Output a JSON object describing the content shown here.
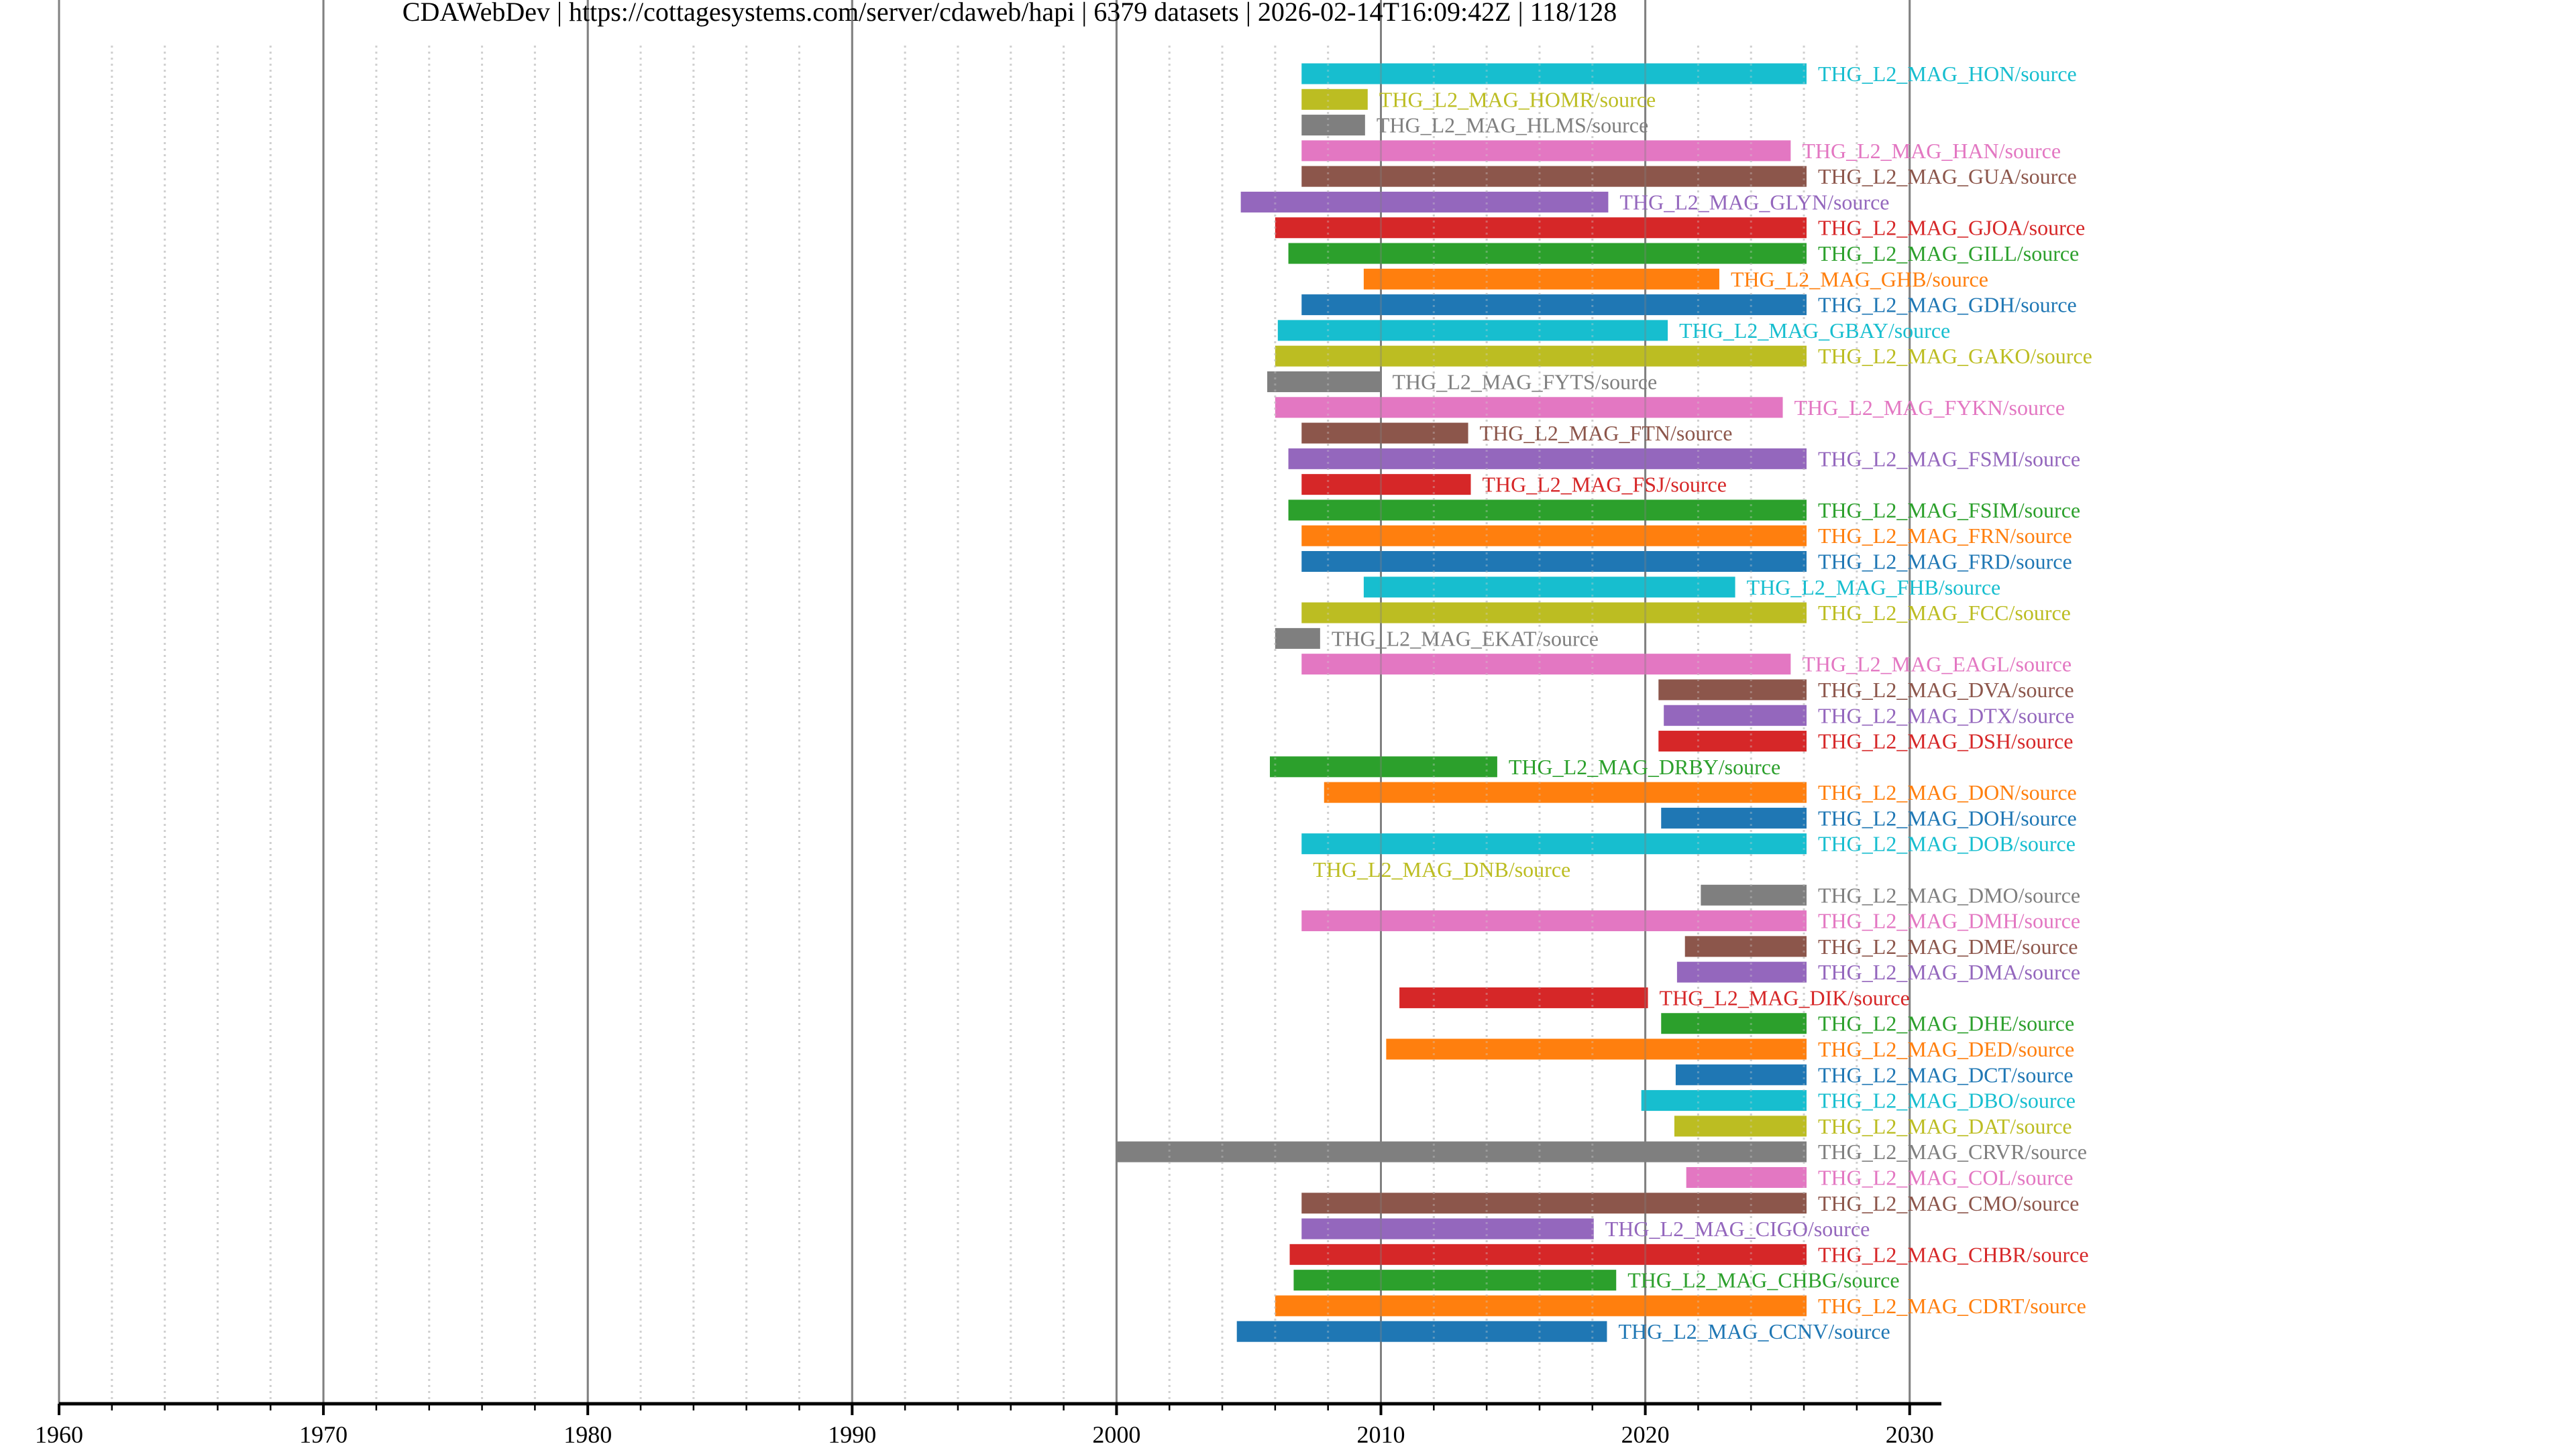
{
  "header": {
    "title_parts": [
      "CDAWebDev",
      "https://cottagesystems.com/server/cdaweb/hapi",
      "6379 datasets",
      "2026-02-14T16:09:42Z",
      "118/128"
    ],
    "title": "CDAWebDev | https://cottagesystems.com/server/cdaweb/hapi | 6379 datasets | 2026-02-14T16:09:42Z | 118/128"
  },
  "chart_data": {
    "type": "bar",
    "orientation": "horizontal",
    "subtype": "timeline",
    "title": "CDAWebDev | https://cottagesystems.com/server/cdaweb/hapi | 6379 datasets | 2026-02-14T16:09:42Z | 118/128",
    "xlabel": "",
    "ylabel": "",
    "xlim": [
      1960,
      2031.2
    ],
    "x_ticks_major": [
      1960,
      1970,
      1980,
      1990,
      2000,
      2010,
      2020,
      2030
    ],
    "x_tick_labels": [
      "1960",
      "1970",
      "1980",
      "1990",
      "2000",
      "2010",
      "2020",
      "2030"
    ],
    "x_ticks_minor_step": 2,
    "grid": {
      "major": "solid gray",
      "minor": "dotted light gray"
    },
    "palette": [
      "#1f77b4",
      "#ff7f0e",
      "#2ca02c",
      "#d62728",
      "#9467bd",
      "#8c564b",
      "#e377c2",
      "#7f7f7f",
      "#bcbd22",
      "#17becf"
    ],
    "label_suffix": "/source",
    "datasets": [
      {
        "name": "THG_L2_MAG_HON",
        "start": 2007.0,
        "end": 2026.1,
        "color": "#17becf"
      },
      {
        "name": "THG_L2_MAG_HOMR",
        "start": 2007.0,
        "end": 2009.5,
        "color": "#bcbd22"
      },
      {
        "name": "THG_L2_MAG_HLMS",
        "start": 2007.0,
        "end": 2009.4,
        "color": "#7f7f7f"
      },
      {
        "name": "THG_L2_MAG_HAN",
        "start": 2007.0,
        "end": 2025.5,
        "color": "#e377c2"
      },
      {
        "name": "THG_L2_MAG_GUA",
        "start": 2007.0,
        "end": 2026.1,
        "color": "#8c564b"
      },
      {
        "name": "THG_L2_MAG_GLYN",
        "start": 2004.7,
        "end": 2018.6,
        "color": "#9467bd"
      },
      {
        "name": "THG_L2_MAG_GJOA",
        "start": 2006.0,
        "end": 2026.1,
        "color": "#d62728"
      },
      {
        "name": "THG_L2_MAG_GILL",
        "start": 2006.5,
        "end": 2026.1,
        "color": "#2ca02c"
      },
      {
        "name": "THG_L2_MAG_GHB",
        "start": 2009.35,
        "end": 2022.8,
        "color": "#ff7f0e"
      },
      {
        "name": "THG_L2_MAG_GDH",
        "start": 2007.0,
        "end": 2026.1,
        "color": "#1f77b4"
      },
      {
        "name": "THG_L2_MAG_GBAY",
        "start": 2006.1,
        "end": 2020.85,
        "color": "#17becf"
      },
      {
        "name": "THG_L2_MAG_GAKO",
        "start": 2006.0,
        "end": 2026.1,
        "color": "#bcbd22"
      },
      {
        "name": "THG_L2_MAG_FYTS",
        "start": 2005.7,
        "end": 2010.0,
        "color": "#7f7f7f"
      },
      {
        "name": "THG_L2_MAG_FYKN",
        "start": 2006.0,
        "end": 2025.2,
        "color": "#e377c2"
      },
      {
        "name": "THG_L2_MAG_FTN",
        "start": 2007.0,
        "end": 2013.3,
        "color": "#8c564b"
      },
      {
        "name": "THG_L2_MAG_FSMI",
        "start": 2006.5,
        "end": 2026.1,
        "color": "#9467bd"
      },
      {
        "name": "THG_L2_MAG_FSJ",
        "start": 2007.0,
        "end": 2013.4,
        "color": "#d62728"
      },
      {
        "name": "THG_L2_MAG_FSIM",
        "start": 2006.5,
        "end": 2026.1,
        "color": "#2ca02c"
      },
      {
        "name": "THG_L2_MAG_FRN",
        "start": 2007.0,
        "end": 2026.1,
        "color": "#ff7f0e"
      },
      {
        "name": "THG_L2_MAG_FRD",
        "start": 2007.0,
        "end": 2026.1,
        "color": "#1f77b4"
      },
      {
        "name": "THG_L2_MAG_FHB",
        "start": 2009.35,
        "end": 2023.4,
        "color": "#17becf"
      },
      {
        "name": "THG_L2_MAG_FCC",
        "start": 2007.0,
        "end": 2026.1,
        "color": "#bcbd22"
      },
      {
        "name": "THG_L2_MAG_EKAT",
        "start": 2006.0,
        "end": 2007.7,
        "color": "#7f7f7f"
      },
      {
        "name": "THG_L2_MAG_EAGL",
        "start": 2007.0,
        "end": 2025.5,
        "color": "#e377c2"
      },
      {
        "name": "THG_L2_MAG_DVA",
        "start": 2020.5,
        "end": 2026.1,
        "color": "#8c564b"
      },
      {
        "name": "THG_L2_MAG_DTX",
        "start": 2020.7,
        "end": 2026.1,
        "color": "#9467bd"
      },
      {
        "name": "THG_L2_MAG_DSH",
        "start": 2020.5,
        "end": 2026.1,
        "color": "#d62728"
      },
      {
        "name": "THG_L2_MAG_DRBY",
        "start": 2005.8,
        "end": 2014.4,
        "color": "#2ca02c"
      },
      {
        "name": "THG_L2_MAG_DON",
        "start": 2007.85,
        "end": 2026.1,
        "color": "#ff7f0e"
      },
      {
        "name": "THG_L2_MAG_DOH",
        "start": 2020.6,
        "end": 2026.1,
        "color": "#1f77b4"
      },
      {
        "name": "THG_L2_MAG_DOB",
        "start": 2007.0,
        "end": 2026.1,
        "color": "#17becf"
      },
      {
        "name": "THG_L2_MAG_DNB",
        "start": 2007.0,
        "end": 2007.0,
        "color": "#bcbd22"
      },
      {
        "name": "THG_L2_MAG_DMO",
        "start": 2022.1,
        "end": 2026.1,
        "color": "#7f7f7f"
      },
      {
        "name": "THG_L2_MAG_DMH",
        "start": 2007.0,
        "end": 2026.1,
        "color": "#e377c2"
      },
      {
        "name": "THG_L2_MAG_DME",
        "start": 2021.5,
        "end": 2026.1,
        "color": "#8c564b"
      },
      {
        "name": "THG_L2_MAG_DMA",
        "start": 2021.2,
        "end": 2026.1,
        "color": "#9467bd"
      },
      {
        "name": "THG_L2_MAG_DIK",
        "start": 2010.7,
        "end": 2020.1,
        "color": "#d62728"
      },
      {
        "name": "THG_L2_MAG_DHE",
        "start": 2020.6,
        "end": 2026.1,
        "color": "#2ca02c"
      },
      {
        "name": "THG_L2_MAG_DED",
        "start": 2010.2,
        "end": 2026.1,
        "color": "#ff7f0e"
      },
      {
        "name": "THG_L2_MAG_DCT",
        "start": 2021.15,
        "end": 2026.1,
        "color": "#1f77b4"
      },
      {
        "name": "THG_L2_MAG_DBO",
        "start": 2019.85,
        "end": 2026.1,
        "color": "#17becf"
      },
      {
        "name": "THG_L2_MAG_DAT",
        "start": 2021.1,
        "end": 2026.1,
        "color": "#bcbd22"
      },
      {
        "name": "THG_L2_MAG_CRVR",
        "start": 2000.0,
        "end": 2026.1,
        "color": "#7f7f7f"
      },
      {
        "name": "THG_L2_MAG_COL",
        "start": 2021.55,
        "end": 2026.1,
        "color": "#e377c2"
      },
      {
        "name": "THG_L2_MAG_CMO",
        "start": 2007.0,
        "end": 2026.1,
        "color": "#8c564b"
      },
      {
        "name": "THG_L2_MAG_CIGO",
        "start": 2007.0,
        "end": 2018.05,
        "color": "#9467bd"
      },
      {
        "name": "THG_L2_MAG_CHBR",
        "start": 2006.55,
        "end": 2026.1,
        "color": "#d62728"
      },
      {
        "name": "THG_L2_MAG_CHBG",
        "start": 2006.7,
        "end": 2018.9,
        "color": "#2ca02c"
      },
      {
        "name": "THG_L2_MAG_CDRT",
        "start": 2006.0,
        "end": 2026.1,
        "color": "#ff7f0e"
      },
      {
        "name": "THG_L2_MAG_CCNV",
        "start": 2004.55,
        "end": 2018.55,
        "color": "#1f77b4"
      }
    ]
  }
}
